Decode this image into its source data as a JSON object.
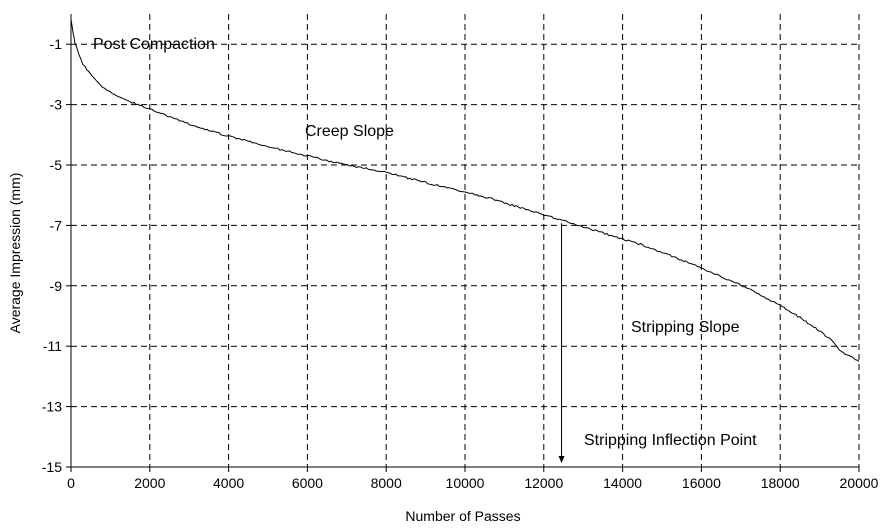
{
  "chart_data": {
    "type": "line",
    "xlabel": "Number of Passes",
    "ylabel": "Average Impression (mm)",
    "xlim": [
      0,
      20000
    ],
    "ylim": [
      -15,
      0
    ],
    "x_ticks": [
      0,
      2000,
      4000,
      6000,
      8000,
      10000,
      12000,
      14000,
      16000,
      18000,
      20000
    ],
    "y_ticks": [
      -1,
      -3,
      -5,
      -7,
      -9,
      -11,
      -13,
      -15
    ],
    "grid": "dashed",
    "legend": "none",
    "series": [
      {
        "x": [
          0,
          50,
          100,
          200,
          300,
          500,
          700,
          1000,
          1500,
          2000,
          2500,
          3000,
          3500,
          4000,
          4500,
          5000,
          5500,
          6000,
          6500,
          7000,
          7500,
          8000,
          8500,
          9000,
          9500,
          10000,
          10500,
          11000,
          11500,
          12000,
          12500,
          13000,
          13500,
          14000,
          14500,
          15000,
          15500,
          16000,
          16500,
          17000,
          17500,
          18000,
          18500,
          19000,
          19300,
          19500,
          19700,
          20000
        ],
        "y": [
          -0.15,
          -0.6,
          -0.95,
          -1.35,
          -1.65,
          -2.0,
          -2.3,
          -2.6,
          -2.9,
          -3.15,
          -3.4,
          -3.65,
          -3.85,
          -4.05,
          -4.2,
          -4.38,
          -4.55,
          -4.7,
          -4.85,
          -5.0,
          -5.12,
          -5.25,
          -5.42,
          -5.58,
          -5.75,
          -5.9,
          -6.05,
          -6.25,
          -6.45,
          -6.65,
          -6.85,
          -7.05,
          -7.25,
          -7.45,
          -7.65,
          -7.9,
          -8.15,
          -8.4,
          -8.7,
          -8.98,
          -9.3,
          -9.65,
          -10.05,
          -10.5,
          -10.8,
          -11.1,
          -11.3,
          -11.5
        ],
        "color": "#000000"
      }
    ],
    "annotations": {
      "post_compaction": "Post Compaction",
      "creep_slope": "Creep Slope",
      "stripping_slope": "Stripping Slope",
      "inflection_point": "Stripping Inflection Point"
    },
    "inflection_x": 12450
  }
}
